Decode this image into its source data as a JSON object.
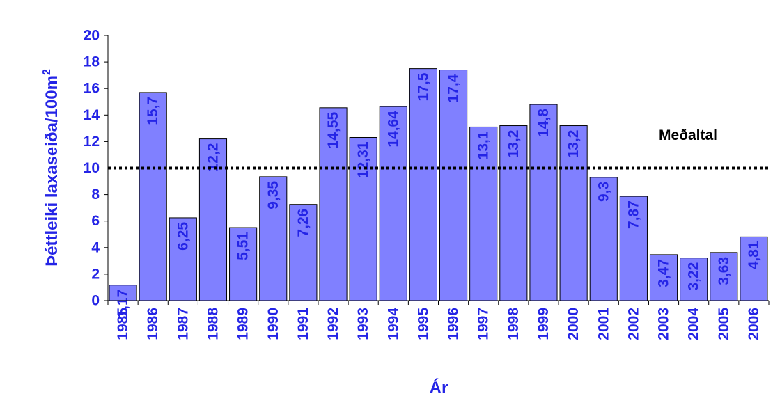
{
  "chart_data": {
    "type": "bar",
    "categories": [
      "1985",
      "1986",
      "1987",
      "1988",
      "1989",
      "1990",
      "1991",
      "1992",
      "1993",
      "1994",
      "1995",
      "1996",
      "1997",
      "1998",
      "1999",
      "2000",
      "2001",
      "2002",
      "2003",
      "2004",
      "2005",
      "2006"
    ],
    "values": [
      1.17,
      15.7,
      6.25,
      12.2,
      5.51,
      9.35,
      7.26,
      14.55,
      12.31,
      14.64,
      17.5,
      17.4,
      13.1,
      13.2,
      14.8,
      13.2,
      9.3,
      7.87,
      3.47,
      3.22,
      3.63,
      4.81
    ],
    "data_labels": [
      "1,17",
      "15,7",
      "6,25",
      "12,2",
      "5,51",
      "9,35",
      "7,26",
      "14,55",
      "12,31",
      "14,64",
      "17,5",
      "17,4",
      "13,1",
      "13,2",
      "14,8",
      "13,2",
      "9,3",
      "7,87",
      "3,47",
      "3,22",
      "3,63",
      "4,81"
    ],
    "xlabel": "Ár",
    "ylabel": "Þéttleiki laxaseiða/100m",
    "ylabel_superscript": "2",
    "ylim": [
      0,
      20
    ],
    "yticks": [
      0,
      2,
      4,
      6,
      8,
      10,
      12,
      14,
      16,
      18,
      20
    ],
    "grid": false,
    "reference_line": {
      "value": 10,
      "label": "Meðaltal",
      "style": "dotted"
    },
    "colors": {
      "bar_fill": "#8080ff",
      "bar_stroke": "#000000",
      "text": "#2424e6",
      "reference_line": "#000000"
    }
  }
}
